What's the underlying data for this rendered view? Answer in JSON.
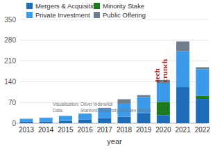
{
  "chart_data": {
    "type": "bar",
    "stacked": true,
    "grid": true,
    "legend": "top-left",
    "x_label": "year",
    "categories": [
      "2013",
      "2014",
      "2015",
      "2016",
      "2017",
      "2018",
      "2019",
      "2020",
      "2021",
      "2022"
    ],
    "series": [
      {
        "name": "Mergers & Acquisition",
        "color": "#1c6cb8",
        "values": [
          5,
          6,
          8,
          12,
          17,
          22,
          33,
          27,
          122,
          82
        ]
      },
      {
        "name": "Private Investment",
        "color": "#3b9bea",
        "values": [
          9,
          12,
          16,
          19,
          32,
          44,
          55,
          62,
          121,
          90
        ]
      },
      {
        "name": "Minority Stake",
        "color": "#1e7a1e",
        "values": [
          0,
          0,
          0,
          0,
          0,
          0,
          0,
          45,
          0,
          10
        ]
      },
      {
        "name": "Public Offering",
        "color": "#6f7d8c",
        "values": [
          1,
          1,
          1,
          2,
          3,
          15,
          7,
          12,
          33,
          7
        ]
      }
    ],
    "ylim": [
      0,
      350
    ],
    "yticks": [
      0,
      70,
      140,
      210,
      280,
      350
    ],
    "annotations": [
      "Visualisation:",
      "Oliver Inderwildi",
      "Data:",
      "Stanford University AI Index Report",
      "tech crunch"
    ]
  }
}
